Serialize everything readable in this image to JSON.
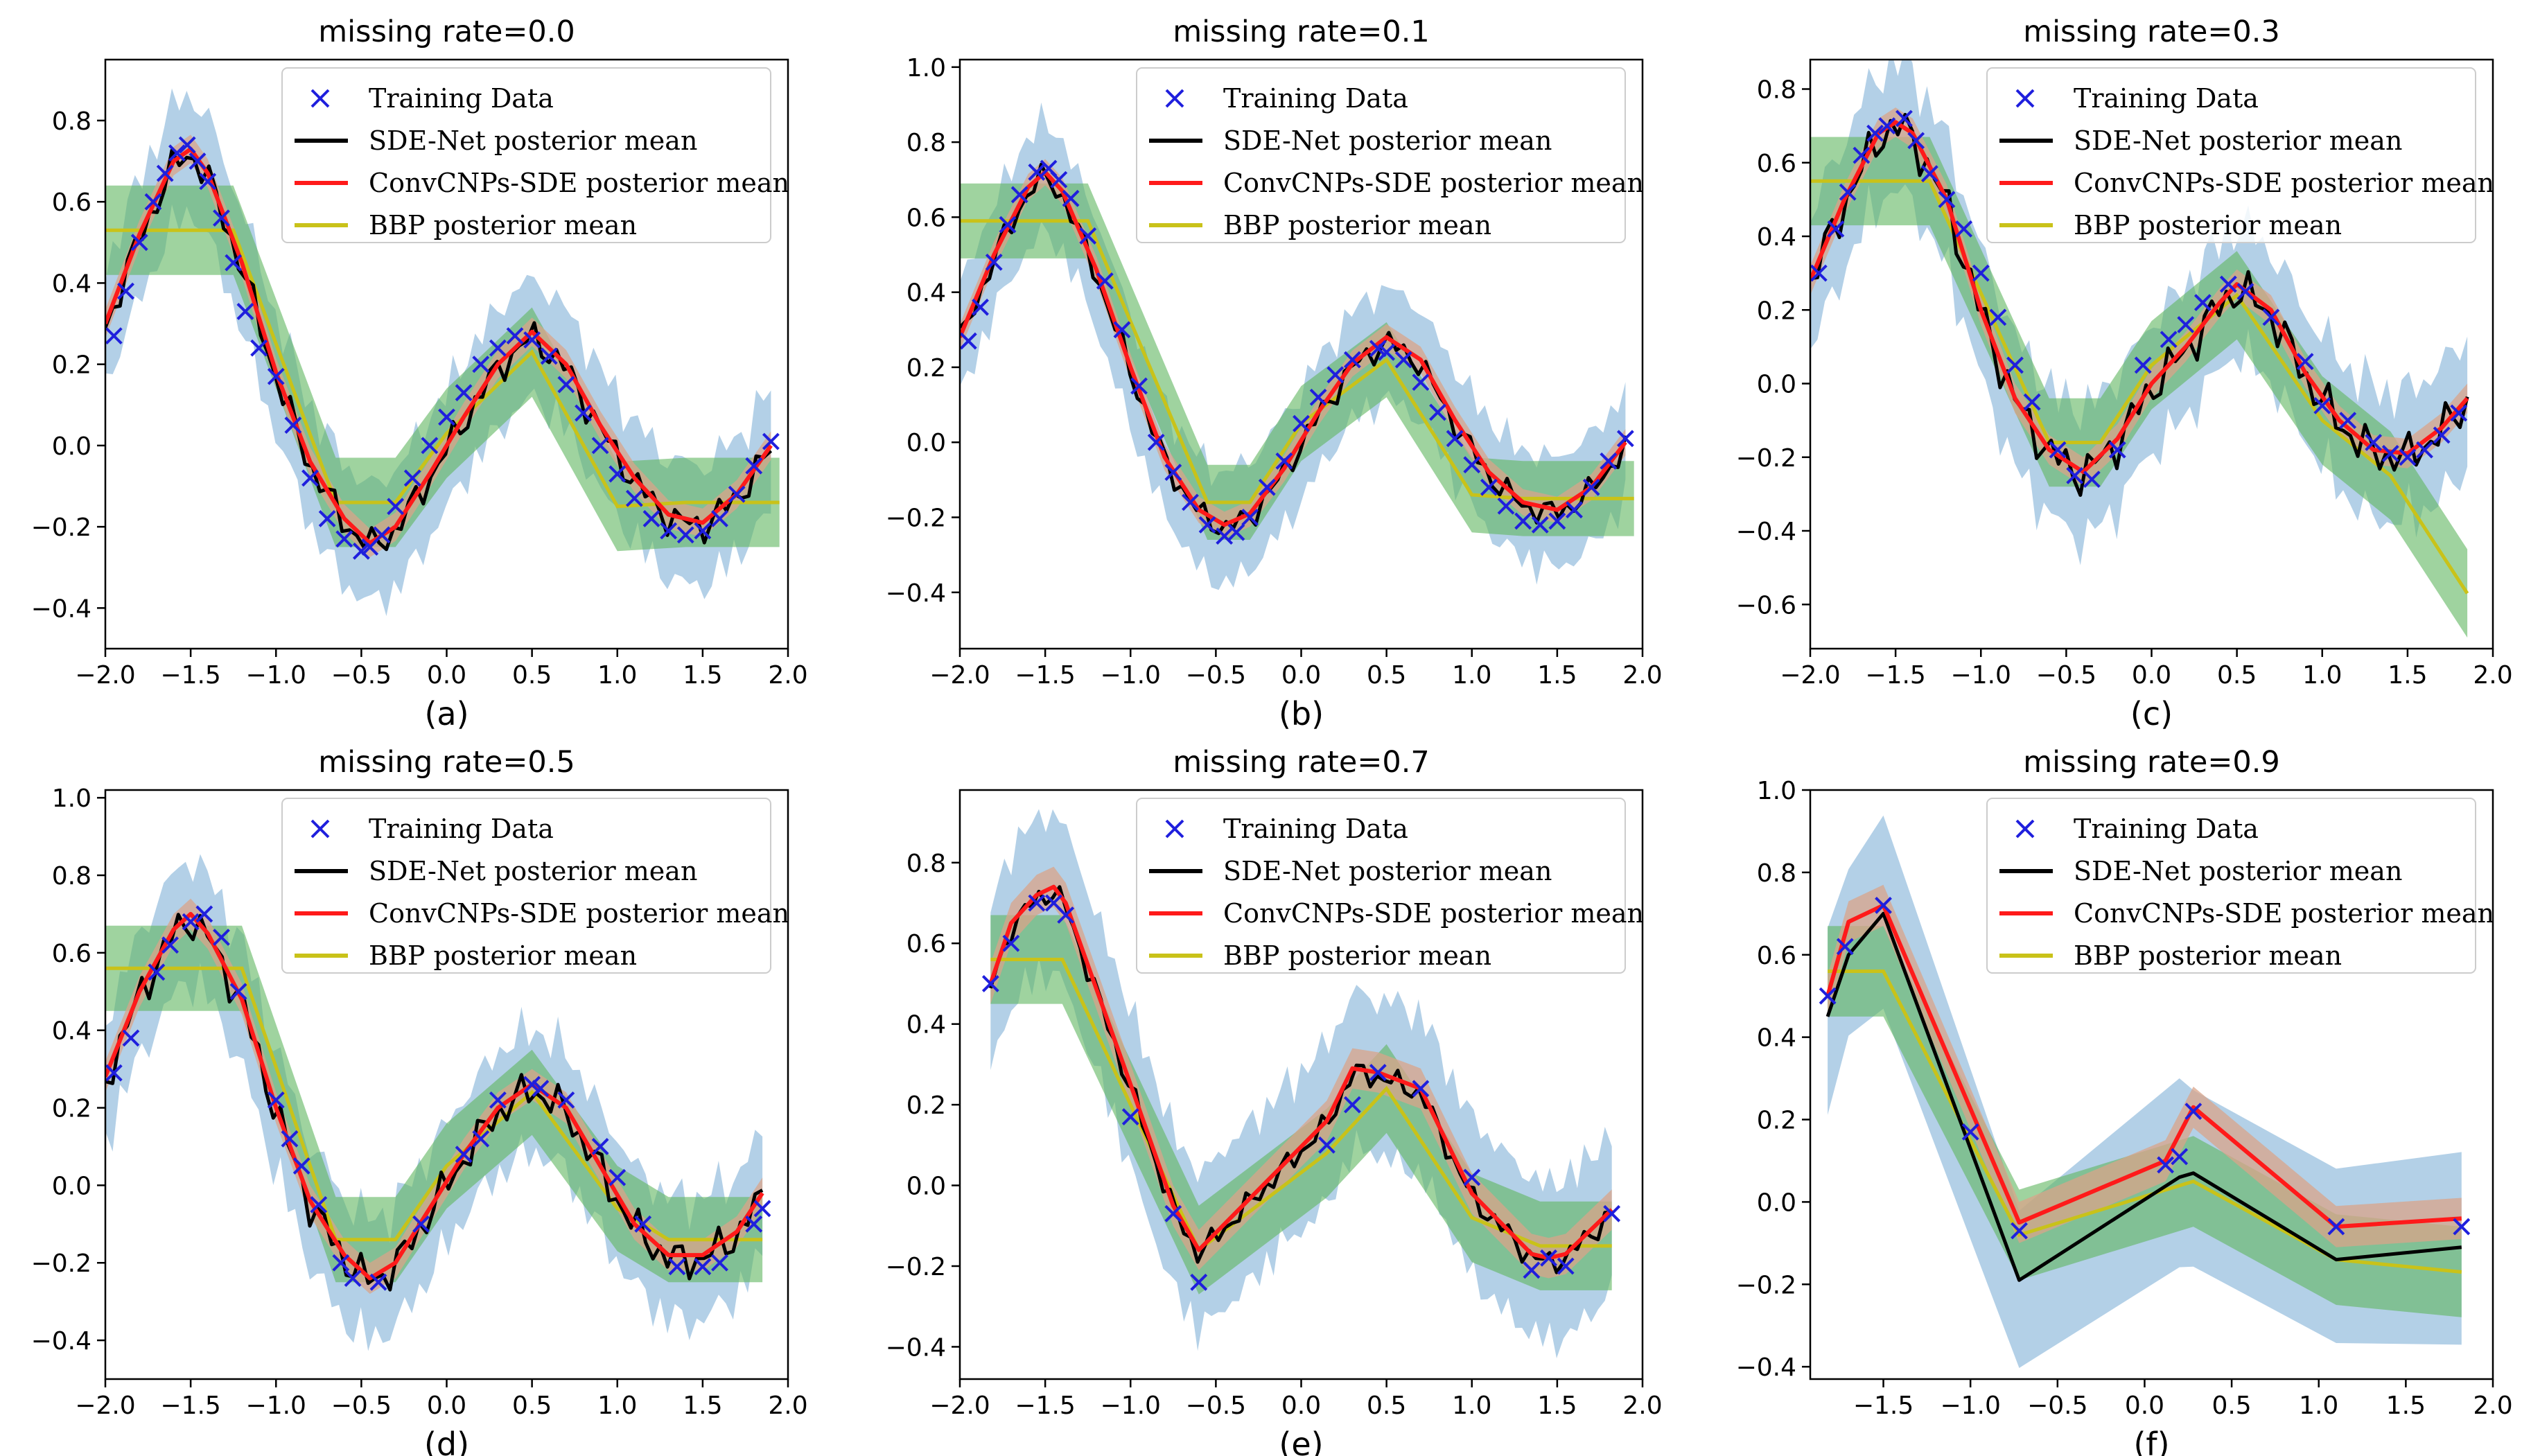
{
  "figure": {
    "legend": {
      "training": "Training Data",
      "sde": "SDE-Net posterior mean",
      "conv": "ConvCNPs-SDE posterior mean",
      "bbp": "BBP posterior mean"
    },
    "colors": {
      "training": "#1f1fdd",
      "sde": "#000000",
      "conv": "#ff1a1a",
      "bbp": "#c9c219",
      "sde_band": "#a6c8e3",
      "conv_band": "#d9a48a",
      "bbp_band": "#5fb55f"
    }
  },
  "chart_data": [
    {
      "type": "line",
      "title": "missing rate=0.0",
      "caption": "(a)",
      "xlim": [
        -2.0,
        2.0
      ],
      "ylim": [
        -0.5,
        0.95
      ],
      "xticks": [
        "-2.0",
        "-1.5",
        "-1.0",
        "-0.5",
        "0.0",
        "0.5",
        "1.0",
        "1.5",
        "2.0"
      ],
      "yticks": [
        "-0.4",
        "-0.2",
        "0.0",
        "0.2",
        "0.4",
        "0.6",
        "0.8"
      ],
      "training_x": [
        -1.95,
        -1.88,
        -1.8,
        -1.72,
        -1.65,
        -1.58,
        -1.52,
        -1.46,
        -1.4,
        -1.32,
        -1.25,
        -1.18,
        -1.1,
        -1.0,
        -0.9,
        -0.8,
        -0.7,
        -0.6,
        -0.5,
        -0.45,
        -0.38,
        -0.3,
        -0.2,
        -0.1,
        0.0,
        0.1,
        0.2,
        0.3,
        0.4,
        0.5,
        0.6,
        0.7,
        0.8,
        0.9,
        1.0,
        1.1,
        1.2,
        1.3,
        1.4,
        1.5,
        1.6,
        1.7,
        1.8,
        1.9
      ],
      "training_y": [
        0.27,
        0.38,
        0.5,
        0.6,
        0.67,
        0.72,
        0.74,
        0.7,
        0.65,
        0.56,
        0.45,
        0.33,
        0.24,
        0.17,
        0.05,
        -0.08,
        -0.18,
        -0.23,
        -0.26,
        -0.25,
        -0.22,
        -0.15,
        -0.08,
        0.0,
        0.07,
        0.13,
        0.2,
        0.24,
        0.27,
        0.26,
        0.22,
        0.15,
        0.08,
        0.0,
        -0.07,
        -0.13,
        -0.18,
        -0.21,
        -0.22,
        -0.21,
        -0.18,
        -0.12,
        -0.05,
        0.01
      ],
      "conv_x": [
        -2.0,
        -1.8,
        -1.6,
        -1.5,
        -1.4,
        -1.2,
        -1.0,
        -0.8,
        -0.6,
        -0.45,
        -0.3,
        -0.1,
        0.1,
        0.3,
        0.5,
        0.7,
        0.9,
        1.1,
        1.3,
        1.5,
        1.7,
        1.9
      ],
      "conv_y": [
        0.3,
        0.52,
        0.7,
        0.73,
        0.67,
        0.45,
        0.18,
        -0.04,
        -0.18,
        -0.24,
        -0.2,
        -0.07,
        0.07,
        0.2,
        0.28,
        0.2,
        0.05,
        -0.08,
        -0.17,
        -0.19,
        -0.12,
        0.0
      ],
      "conv_w": 0.035,
      "sde_w": 0.15,
      "sde_jitter": 0.04,
      "bbp_x": [
        -2.0,
        -1.25,
        -0.65,
        -0.3,
        0.0,
        0.5,
        1.0,
        1.4,
        1.95
      ],
      "bbp_y": [
        0.53,
        0.53,
        -0.14,
        -0.14,
        0.03,
        0.23,
        -0.15,
        -0.14,
        -0.14
      ],
      "bbp_w": 0.11
    },
    {
      "type": "line",
      "title": "missing rate=0.1",
      "caption": "(b)",
      "xlim": [
        -2.0,
        2.0
      ],
      "ylim": [
        -0.55,
        1.02
      ],
      "xticks": [
        "-2.0",
        "-1.5",
        "-1.0",
        "-0.5",
        "0.0",
        "0.5",
        "1.0",
        "1.5",
        "2.0"
      ],
      "yticks": [
        "-0.4",
        "-0.2",
        "0.0",
        "0.2",
        "0.4",
        "0.6",
        "0.8",
        "1.0"
      ],
      "training_x": [
        -1.95,
        -1.88,
        -1.8,
        -1.72,
        -1.65,
        -1.55,
        -1.48,
        -1.42,
        -1.35,
        -1.25,
        -1.15,
        -1.05,
        -0.95,
        -0.85,
        -0.75,
        -0.65,
        -0.55,
        -0.45,
        -0.38,
        -0.3,
        -0.2,
        -0.1,
        0.0,
        0.1,
        0.2,
        0.3,
        0.45,
        0.5,
        0.6,
        0.7,
        0.8,
        0.9,
        1.0,
        1.1,
        1.2,
        1.3,
        1.4,
        1.5,
        1.6,
        1.7,
        1.8,
        1.9
      ],
      "training_y": [
        0.27,
        0.36,
        0.48,
        0.58,
        0.66,
        0.72,
        0.73,
        0.7,
        0.65,
        0.55,
        0.43,
        0.3,
        0.15,
        0.0,
        -0.08,
        -0.16,
        -0.22,
        -0.25,
        -0.24,
        -0.2,
        -0.12,
        -0.05,
        0.05,
        0.12,
        0.18,
        0.22,
        0.25,
        0.24,
        0.22,
        0.16,
        0.08,
        0.01,
        -0.06,
        -0.12,
        -0.17,
        -0.21,
        -0.22,
        -0.21,
        -0.18,
        -0.12,
        -0.05,
        0.01
      ],
      "conv_x": [
        -2.0,
        -1.8,
        -1.6,
        -1.5,
        -1.4,
        -1.2,
        -1.0,
        -0.8,
        -0.6,
        -0.45,
        -0.3,
        -0.1,
        0.1,
        0.3,
        0.5,
        0.7,
        0.9,
        1.1,
        1.3,
        1.5,
        1.7,
        1.9
      ],
      "conv_y": [
        0.28,
        0.5,
        0.68,
        0.72,
        0.67,
        0.46,
        0.2,
        -0.04,
        -0.18,
        -0.22,
        -0.19,
        -0.07,
        0.08,
        0.21,
        0.28,
        0.22,
        0.06,
        -0.08,
        -0.16,
        -0.18,
        -0.12,
        0.0
      ],
      "conv_w": 0.035,
      "sde_w": 0.15,
      "sde_jitter": 0.035,
      "bbp_x": [
        -2.0,
        -1.25,
        -0.55,
        -0.3,
        0.0,
        0.5,
        1.0,
        1.3,
        1.95
      ],
      "bbp_y": [
        0.59,
        0.59,
        -0.16,
        -0.16,
        0.05,
        0.22,
        -0.14,
        -0.15,
        -0.15
      ],
      "bbp_w": 0.1
    },
    {
      "type": "line",
      "title": "missing rate=0.3",
      "caption": "(c)",
      "xlim": [
        -2.0,
        2.0
      ],
      "ylim": [
        -0.72,
        0.88
      ],
      "xticks": [
        "-2.0",
        "-1.5",
        "-1.0",
        "-0.5",
        "0.0",
        "0.5",
        "1.0",
        "1.5",
        "2.0"
      ],
      "yticks": [
        "-0.6",
        "-0.4",
        "-0.2",
        "0.0",
        "0.2",
        "0.4",
        "0.6",
        "0.8"
      ],
      "training_x": [
        -1.95,
        -1.85,
        -1.78,
        -1.7,
        -1.62,
        -1.55,
        -1.45,
        -1.38,
        -1.3,
        -1.2,
        -1.1,
        -1.0,
        -0.9,
        -0.8,
        -0.7,
        -0.55,
        -0.45,
        -0.35,
        -0.2,
        -0.05,
        0.1,
        0.2,
        0.3,
        0.45,
        0.55,
        0.7,
        0.9,
        1.0,
        1.15,
        1.3,
        1.4,
        1.5,
        1.6,
        1.7,
        1.8
      ],
      "training_y": [
        0.3,
        0.42,
        0.52,
        0.62,
        0.68,
        0.7,
        0.72,
        0.66,
        0.57,
        0.5,
        0.42,
        0.3,
        0.18,
        0.05,
        -0.05,
        -0.18,
        -0.25,
        -0.26,
        -0.18,
        0.05,
        0.12,
        0.16,
        0.22,
        0.27,
        0.25,
        0.18,
        0.06,
        -0.06,
        -0.1,
        -0.16,
        -0.19,
        -0.2,
        -0.18,
        -0.14,
        -0.08
      ],
      "conv_x": [
        -2.0,
        -1.8,
        -1.6,
        -1.5,
        -1.4,
        -1.2,
        -1.0,
        -0.8,
        -0.6,
        -0.4,
        -0.2,
        0.0,
        0.2,
        0.4,
        0.5,
        0.7,
        0.9,
        1.1,
        1.3,
        1.5,
        1.7,
        1.85
      ],
      "conv_y": [
        0.28,
        0.5,
        0.68,
        0.71,
        0.68,
        0.5,
        0.2,
        -0.04,
        -0.18,
        -0.24,
        -0.15,
        0.0,
        0.1,
        0.22,
        0.27,
        0.2,
        0.03,
        -0.1,
        -0.18,
        -0.19,
        -0.12,
        -0.04
      ],
      "conv_w": 0.04,
      "sde_w": 0.18,
      "sde_jitter": 0.06,
      "bbp_x": [
        -2.0,
        -1.3,
        -0.6,
        -0.3,
        0.0,
        0.5,
        1.0,
        1.4,
        1.85
      ],
      "bbp_y": [
        0.55,
        0.55,
        -0.16,
        -0.16,
        0.05,
        0.24,
        -0.1,
        -0.25,
        -0.57
      ],
      "bbp_w": 0.12
    },
    {
      "type": "line",
      "title": "missing rate=0.5",
      "caption": "(d)",
      "xlim": [
        -2.0,
        2.0
      ],
      "ylim": [
        -0.5,
        1.02
      ],
      "xticks": [
        "-2.0",
        "-1.5",
        "-1.0",
        "-0.5",
        "0.0",
        "0.5",
        "1.0",
        "1.5",
        "2.0"
      ],
      "yticks": [
        "-0.4",
        "-0.2",
        "0.0",
        "0.2",
        "0.4",
        "0.6",
        "0.8",
        "1.0"
      ],
      "training_x": [
        -1.95,
        -1.85,
        -1.7,
        -1.62,
        -1.5,
        -1.42,
        -1.32,
        -1.22,
        -1.0,
        -0.92,
        -0.85,
        -0.75,
        -0.62,
        -0.55,
        -0.4,
        -0.15,
        0.1,
        0.2,
        0.3,
        0.5,
        0.55,
        0.7,
        0.9,
        1.0,
        1.15,
        1.35,
        1.5,
        1.6,
        1.8,
        1.85
      ],
      "training_y": [
        0.29,
        0.38,
        0.55,
        0.62,
        0.68,
        0.7,
        0.64,
        0.5,
        0.22,
        0.12,
        0.05,
        -0.05,
        -0.2,
        -0.24,
        -0.25,
        -0.1,
        0.08,
        0.12,
        0.22,
        0.26,
        0.25,
        0.22,
        0.1,
        0.02,
        -0.1,
        -0.21,
        -0.21,
        -0.2,
        -0.1,
        -0.06
      ],
      "conv_x": [
        -2.0,
        -1.8,
        -1.6,
        -1.5,
        -1.4,
        -1.2,
        -1.0,
        -0.8,
        -0.6,
        -0.45,
        -0.3,
        -0.1,
        0.1,
        0.3,
        0.5,
        0.7,
        0.9,
        1.1,
        1.3,
        1.5,
        1.7,
        1.85
      ],
      "conv_y": [
        0.28,
        0.5,
        0.66,
        0.7,
        0.65,
        0.48,
        0.2,
        -0.04,
        -0.18,
        -0.24,
        -0.2,
        -0.06,
        0.08,
        0.2,
        0.26,
        0.2,
        0.05,
        -0.1,
        -0.18,
        -0.18,
        -0.12,
        -0.02
      ],
      "conv_w": 0.04,
      "sde_w": 0.16,
      "sde_jitter": 0.05,
      "bbp_x": [
        -2.0,
        -1.2,
        -0.65,
        -0.3,
        0.0,
        0.5,
        1.0,
        1.3,
        1.85
      ],
      "bbp_y": [
        0.56,
        0.56,
        -0.14,
        -0.14,
        0.05,
        0.24,
        -0.06,
        -0.14,
        -0.14
      ],
      "bbp_w": 0.11
    },
    {
      "type": "line",
      "title": "missing rate=0.7",
      "caption": "(e)",
      "xlim": [
        -2.0,
        2.0
      ],
      "ylim": [
        -0.48,
        0.98
      ],
      "xticks": [
        "-2.0",
        "-1.5",
        "-1.0",
        "-0.5",
        "0.0",
        "0.5",
        "1.0",
        "1.5",
        "2.0"
      ],
      "yticks": [
        "-0.4",
        "-0.2",
        "0.0",
        "0.2",
        "0.4",
        "0.6",
        "0.8"
      ],
      "training_x": [
        -1.82,
        -1.7,
        -1.55,
        -1.45,
        -1.38,
        -1.0,
        -0.75,
        -0.6,
        0.15,
        0.3,
        0.45,
        0.7,
        1.0,
        1.35,
        1.45,
        1.55,
        1.82
      ],
      "training_y": [
        0.5,
        0.6,
        0.7,
        0.7,
        0.67,
        0.17,
        -0.07,
        -0.24,
        0.1,
        0.2,
        0.28,
        0.24,
        0.02,
        -0.21,
        -0.18,
        -0.2,
        -0.07
      ],
      "conv_x": [
        -1.82,
        -1.7,
        -1.55,
        -1.45,
        -1.38,
        -1.0,
        -0.75,
        -0.6,
        0.15,
        0.3,
        0.45,
        0.7,
        1.0,
        1.35,
        1.45,
        1.55,
        1.82
      ],
      "conv_y": [
        0.5,
        0.65,
        0.72,
        0.74,
        0.7,
        0.25,
        -0.05,
        -0.16,
        0.16,
        0.29,
        0.28,
        0.24,
        -0.02,
        -0.17,
        -0.18,
        -0.17,
        -0.06
      ],
      "conv_w": 0.05,
      "sde_w": 0.2,
      "sde_jitter": 0.03,
      "bbp_x": [
        -1.82,
        -1.4,
        -0.6,
        0.15,
        0.5,
        1.0,
        1.4,
        1.82
      ],
      "bbp_y": [
        0.56,
        0.56,
        -0.16,
        0.08,
        0.24,
        -0.08,
        -0.15,
        -0.15
      ],
      "bbp_w": 0.11
    },
    {
      "type": "line",
      "title": "missing rate=0.9",
      "caption": "(f)",
      "xlim": [
        -1.92,
        2.0
      ],
      "ylim": [
        -0.43,
        1.0
      ],
      "xticks": [
        "-1.5",
        "-1.0",
        "-0.5",
        "0.0",
        "0.5",
        "1.0",
        "1.5",
        "2.0"
      ],
      "xtick_values": [
        -1.5,
        -1.0,
        -0.5,
        0.0,
        0.5,
        1.0,
        1.5,
        2.0
      ],
      "yticks": [
        "-0.4",
        "-0.2",
        "0.0",
        "0.2",
        "0.4",
        "0.6",
        "0.8",
        "1.0"
      ],
      "training_x": [
        -1.82,
        -1.72,
        -1.5,
        -1.0,
        -0.72,
        0.12,
        0.2,
        0.28,
        1.1,
        1.82
      ],
      "training_y": [
        0.5,
        0.62,
        0.72,
        0.17,
        -0.07,
        0.09,
        0.11,
        0.22,
        -0.06,
        -0.06
      ],
      "conv_x": [
        -1.82,
        -1.7,
        -1.5,
        -0.72,
        0.12,
        0.28,
        1.1,
        1.82
      ],
      "conv_y": [
        0.5,
        0.68,
        0.72,
        -0.05,
        0.1,
        0.23,
        -0.06,
        -0.04
      ],
      "conv_w": 0.05,
      "sde_x": [
        -1.82,
        -1.7,
        -1.5,
        -0.72,
        0.2,
        0.28,
        1.1,
        1.82
      ],
      "sde_y": [
        0.45,
        0.6,
        0.7,
        -0.19,
        0.06,
        0.07,
        -0.14,
        -0.11
      ],
      "sde_w": 0.22,
      "sde_jitter": 0.0,
      "bbp_x": [
        -1.82,
        -1.6,
        -1.5,
        -0.72,
        0.28,
        1.1,
        1.82
      ],
      "bbp_y": [
        0.56,
        0.56,
        0.56,
        -0.08,
        0.05,
        -0.14,
        -0.17
      ],
      "bbp_w": 0.11
    }
  ]
}
